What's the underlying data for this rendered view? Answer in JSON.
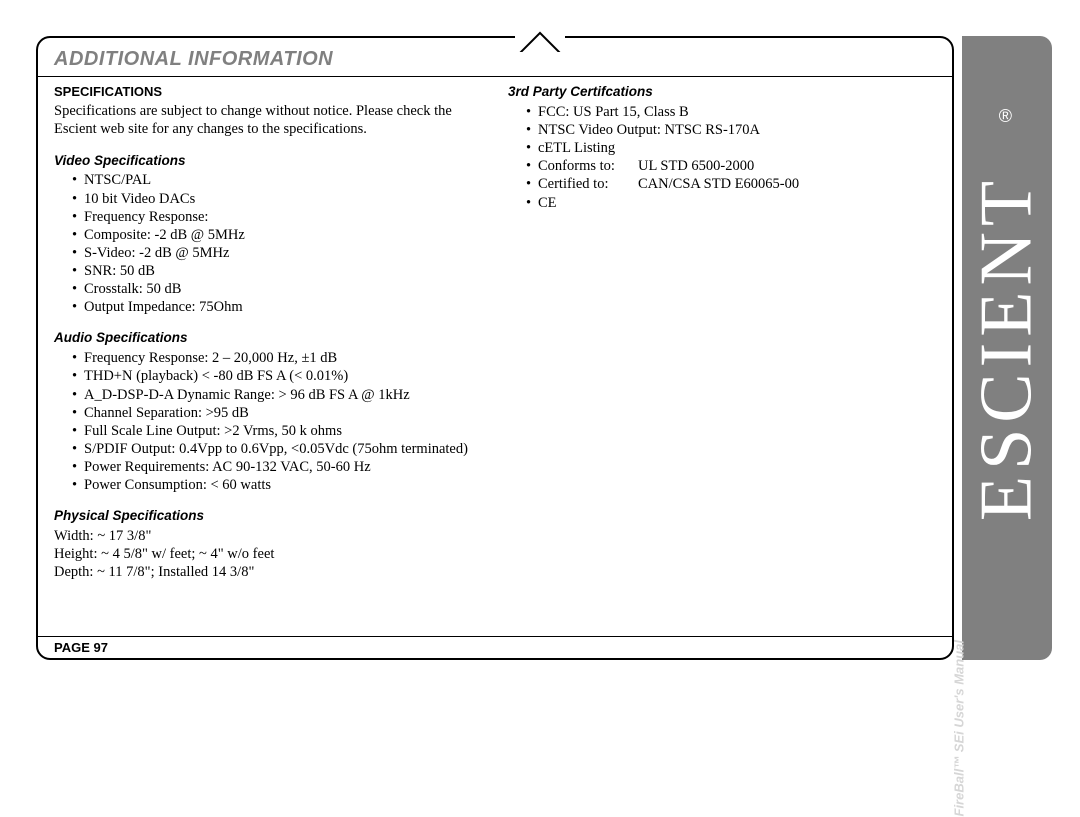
{
  "page": {
    "section_title": "ADDITIONAL INFORMATION",
    "page_label": "PAGE 97"
  },
  "left": {
    "heading": "SPECIFICATIONS",
    "intro": "Specifications are subject to change without notice. Please check the Escient web site for any changes to the specifications.",
    "video_head": "Video Specifications",
    "video_items": [
      "NTSC/PAL",
      "10 bit Video DACs",
      "Frequency Response:",
      "Composite: -2 dB @ 5MHz",
      "S-Video: -2 dB @ 5MHz",
      "SNR: 50 dB",
      "Crosstalk: 50 dB",
      "Output Impedance: 75Ohm"
    ],
    "audio_head": "Audio Specifications",
    "audio_items": [
      "Frequency Response: 2 – 20,000 Hz, ±1 dB",
      "THD+N (playback) < -80 dB FS A (< 0.01%)",
      "A_D-DSP-D-A Dynamic Range: > 96 dB FS A @ 1kHz",
      "Channel Separation: >95 dB",
      "Full Scale Line Output: >2 Vrms, 50 k ohms",
      "S/PDIF Output: 0.4Vpp to 0.6Vpp, <0.05Vdc (75ohm terminated)",
      "Power Requirements: AC 90-132 VAC, 50-60 Hz",
      "Power Consumption: < 60 watts"
    ],
    "phys_head": "Physical Specifications",
    "phys_lines": [
      "Width:  ~ 17  3/8\"",
      "Height: ~ 4 5/8\" w/ feet;  ~ 4\" w/o feet",
      "Depth:  ~ 11 7/8\";  Installed 14 3/8\""
    ]
  },
  "right": {
    "cert_head": "3rd Party Certifcations",
    "cert_items": [
      "FCC:  US Part 15, Class B",
      "NTSC Video Output:  NTSC RS-170A",
      "cETL Listing"
    ],
    "conforms_label": "Conforms to:",
    "conforms_value": "UL STD 6500-2000",
    "certified_label": "Certified to:",
    "certified_value": "CAN/CSA STD E60065-00",
    "ce": "CE"
  },
  "side": {
    "logo": "ESCIENT",
    "reg": "®",
    "caption_bold": "FireBall™ SEi",
    "caption_rest": " User's Manual"
  },
  "colors": {
    "frame": "#000000",
    "title_gray": "#808080",
    "side_bg": "#808080",
    "side_text": "#ffffff",
    "caption_gray": "#cfcfcf"
  }
}
